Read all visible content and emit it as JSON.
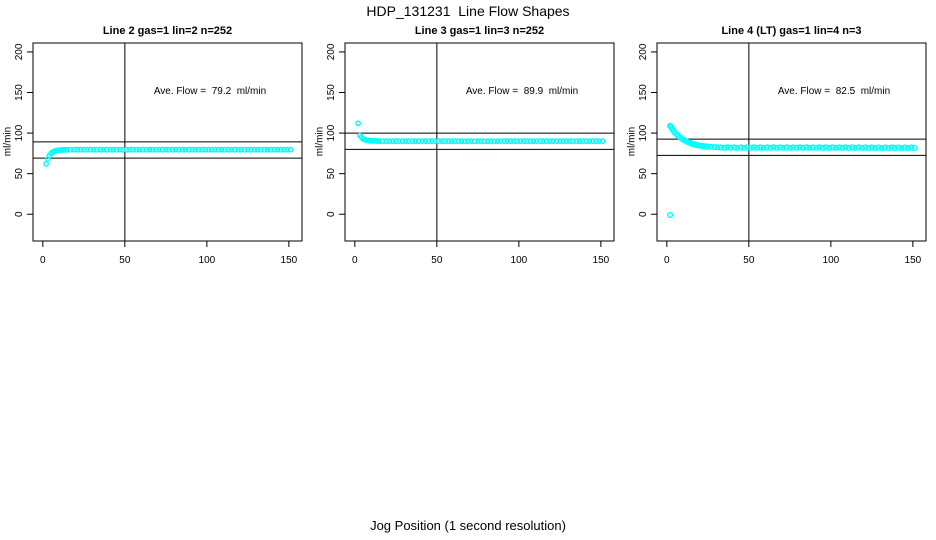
{
  "figure": {
    "title": "HDP_131231  Line Flow Shapes",
    "xlabel": "Jog Position (1 second resolution)",
    "background": "#ffffff",
    "point_color": "#00ffff",
    "axis_color": "#000000"
  },
  "chart_data": [
    {
      "type": "scatter",
      "title": "Line 2 gas=1 lin=2 n=252",
      "annotation": "Ave. Flow =  79.2  ml/min",
      "ave_flow_ml_min": 79.2,
      "ylabel": "ml/min",
      "xlim": [
        -6,
        158
      ],
      "ylim": [
        -33,
        211
      ],
      "xticks": [
        0,
        50,
        100,
        150
      ],
      "yticks": [
        0,
        50,
        100,
        150,
        200
      ],
      "vline": 50,
      "hlines": [
        89.2,
        69.2
      ],
      "marker_r": 2.2,
      "points": [
        [
          2,
          62
        ],
        [
          3,
          68
        ],
        [
          4,
          72
        ],
        [
          5,
          75
        ],
        [
          6,
          76.5
        ],
        [
          7,
          77.5
        ],
        [
          8,
          78.3
        ],
        [
          9,
          78.8
        ],
        [
          10,
          79
        ],
        [
          11,
          79.1
        ],
        [
          12,
          79.2
        ],
        [
          13,
          79.3
        ],
        [
          14,
          79.4
        ],
        [
          15,
          79.5
        ],
        [
          17,
          79.5
        ],
        [
          19,
          79.5
        ],
        [
          21,
          79.5
        ],
        [
          23,
          79.5
        ],
        [
          25,
          79.5
        ],
        [
          27,
          79.5
        ],
        [
          29,
          79.5
        ],
        [
          31,
          79.5
        ],
        [
          33,
          79.5
        ],
        [
          35,
          79.5
        ],
        [
          37,
          79.5
        ],
        [
          39,
          79.5
        ],
        [
          41,
          79.5
        ],
        [
          43,
          79.5
        ],
        [
          45,
          79.5
        ],
        [
          47,
          79.5
        ],
        [
          49,
          79.5
        ],
        [
          51,
          79.5
        ],
        [
          53,
          79.5
        ],
        [
          55,
          79.5
        ],
        [
          57,
          79.5
        ],
        [
          59,
          79.5
        ],
        [
          61,
          79.5
        ],
        [
          63,
          79.5
        ],
        [
          65,
          79.5
        ],
        [
          67,
          79.5
        ],
        [
          69,
          79.5
        ],
        [
          71,
          79.5
        ],
        [
          73,
          79.5
        ],
        [
          75,
          79.5
        ],
        [
          77,
          79.5
        ],
        [
          79,
          79.5
        ],
        [
          81,
          79.5
        ],
        [
          83,
          79.5
        ],
        [
          85,
          79.5
        ],
        [
          87,
          79.5
        ],
        [
          89,
          79.5
        ],
        [
          91,
          79.5
        ],
        [
          93,
          79.5
        ],
        [
          95,
          79.5
        ],
        [
          97,
          79.5
        ],
        [
          99,
          79.5
        ],
        [
          101,
          79.5
        ],
        [
          103,
          79.5
        ],
        [
          105,
          79.5
        ],
        [
          107,
          79.5
        ],
        [
          109,
          79.5
        ],
        [
          111,
          79.5
        ],
        [
          113,
          79.5
        ],
        [
          115,
          79.5
        ],
        [
          117,
          79.5
        ],
        [
          119,
          79.5
        ],
        [
          121,
          79.5
        ],
        [
          123,
          79.5
        ],
        [
          125,
          79.5
        ],
        [
          127,
          79.5
        ],
        [
          129,
          79.5
        ],
        [
          131,
          79.5
        ],
        [
          133,
          79.5
        ],
        [
          135,
          79.5
        ],
        [
          137,
          79.5
        ],
        [
          139,
          79.5
        ],
        [
          141,
          79.5
        ],
        [
          143,
          79.5
        ],
        [
          145,
          79.5
        ],
        [
          147,
          79.5
        ],
        [
          149,
          79.5
        ],
        [
          151,
          79.5
        ]
      ]
    },
    {
      "type": "scatter",
      "title": "Line 3 gas=1 lin=3 n=252",
      "annotation": "Ave. Flow =  89.9  ml/min",
      "ave_flow_ml_min": 89.9,
      "ylabel": "ml/min",
      "xlim": [
        -6,
        158
      ],
      "ylim": [
        -33,
        211
      ],
      "xticks": [
        0,
        50,
        100,
        150
      ],
      "yticks": [
        0,
        50,
        100,
        150,
        200
      ],
      "vline": 50,
      "hlines": [
        99.9,
        79.9
      ],
      "marker_r": 2.2,
      "points": [
        [
          2,
          112
        ],
        [
          3,
          97
        ],
        [
          4,
          95
        ],
        [
          5,
          93
        ],
        [
          6,
          92
        ],
        [
          7,
          91.5
        ],
        [
          8,
          91
        ],
        [
          9,
          90.7
        ],
        [
          10,
          90.5
        ],
        [
          11,
          90.4
        ],
        [
          12,
          90.3
        ],
        [
          13,
          90.2
        ],
        [
          14,
          90.1
        ],
        [
          15,
          90
        ],
        [
          17,
          90
        ],
        [
          19,
          90
        ],
        [
          21,
          90
        ],
        [
          23,
          90
        ],
        [
          25,
          90
        ],
        [
          27,
          90
        ],
        [
          29,
          90
        ],
        [
          31,
          90
        ],
        [
          33,
          90
        ],
        [
          35,
          90
        ],
        [
          37,
          90
        ],
        [
          39,
          90
        ],
        [
          41,
          90
        ],
        [
          43,
          90
        ],
        [
          45,
          90
        ],
        [
          47,
          90
        ],
        [
          49,
          90
        ],
        [
          51,
          90
        ],
        [
          53,
          90
        ],
        [
          55,
          90
        ],
        [
          57,
          90
        ],
        [
          59,
          90
        ],
        [
          61,
          90
        ],
        [
          63,
          90
        ],
        [
          65,
          90
        ],
        [
          67,
          89.8
        ],
        [
          69,
          90
        ],
        [
          71,
          90
        ],
        [
          73,
          89.8
        ],
        [
          75,
          90
        ],
        [
          77,
          90
        ],
        [
          79,
          89.8
        ],
        [
          81,
          90
        ],
        [
          83,
          90
        ],
        [
          85,
          89.8
        ],
        [
          87,
          90
        ],
        [
          89,
          90
        ],
        [
          91,
          90
        ],
        [
          93,
          90
        ],
        [
          95,
          90
        ],
        [
          97,
          90
        ],
        [
          99,
          90
        ],
        [
          101,
          90
        ],
        [
          103,
          90
        ],
        [
          105,
          90
        ],
        [
          107,
          90
        ],
        [
          109,
          90
        ],
        [
          111,
          90
        ],
        [
          113,
          90
        ],
        [
          115,
          90
        ],
        [
          117,
          90
        ],
        [
          119,
          90
        ],
        [
          121,
          90
        ],
        [
          123,
          90
        ],
        [
          125,
          90
        ],
        [
          127,
          90
        ],
        [
          129,
          90
        ],
        [
          131,
          90
        ],
        [
          133,
          90
        ],
        [
          135,
          90
        ],
        [
          137,
          90
        ],
        [
          139,
          90
        ],
        [
          141,
          90
        ],
        [
          143,
          90
        ],
        [
          145,
          90
        ],
        [
          147,
          90
        ],
        [
          149,
          90
        ],
        [
          151,
          90
        ]
      ]
    },
    {
      "type": "scatter",
      "title": "Line 4 (LT) gas=1 lin=4 n=3",
      "annotation": "Ave. Flow =  82.5  ml/min",
      "ave_flow_ml_min": 82.5,
      "ylabel": "ml/min",
      "xlim": [
        -6,
        158
      ],
      "ylim": [
        -33,
        211
      ],
      "xticks": [
        0,
        50,
        100,
        150
      ],
      "yticks": [
        0,
        50,
        100,
        150,
        200
      ],
      "vline": 50,
      "hlines": [
        92.5,
        72.5
      ],
      "marker_r": 2.4,
      "points": [
        [
          2,
          -1
        ],
        [
          2,
          109
        ],
        [
          2.5,
          108
        ],
        [
          3,
          106
        ],
        [
          4,
          103
        ],
        [
          5,
          100.5
        ],
        [
          6,
          98.5
        ],
        [
          7,
          96.5
        ],
        [
          8,
          94.8
        ],
        [
          9,
          93.3
        ],
        [
          10,
          92
        ],
        [
          11,
          90.8
        ],
        [
          12,
          89.8
        ],
        [
          13,
          88.8
        ],
        [
          14,
          88
        ],
        [
          15,
          87.2
        ],
        [
          16,
          86.5
        ],
        [
          17,
          85.9
        ],
        [
          18,
          85.4
        ],
        [
          19,
          85
        ],
        [
          20,
          84.6
        ],
        [
          21,
          84.3
        ],
        [
          22,
          84
        ],
        [
          23,
          83.7
        ],
        [
          24,
          83.5
        ],
        [
          25,
          83.3
        ],
        [
          27,
          83
        ],
        [
          29,
          82.7
        ],
        [
          31,
          82.5
        ],
        [
          33,
          82.4
        ],
        [
          35,
          81.8
        ],
        [
          37,
          82.4
        ],
        [
          39,
          81.8
        ],
        [
          41,
          82.4
        ],
        [
          43,
          81.8
        ],
        [
          45,
          82.4
        ],
        [
          47,
          81.8
        ],
        [
          49,
          82.4
        ],
        [
          51,
          81.8
        ],
        [
          53,
          82.4
        ],
        [
          55,
          81.8
        ],
        [
          57,
          82.4
        ],
        [
          59,
          81.8
        ],
        [
          61,
          82.4
        ],
        [
          63,
          81.8
        ],
        [
          65,
          82.4
        ],
        [
          67,
          81.8
        ],
        [
          69,
          82.4
        ],
        [
          71,
          81.8
        ],
        [
          73,
          82.4
        ],
        [
          75,
          81.8
        ],
        [
          77,
          82.4
        ],
        [
          79,
          81.8
        ],
        [
          81,
          82.4
        ],
        [
          83,
          81.8
        ],
        [
          85,
          82.4
        ],
        [
          87,
          81.8
        ],
        [
          89,
          82.4
        ],
        [
          91,
          81.8
        ],
        [
          93,
          82.3
        ],
        [
          95,
          81.7
        ],
        [
          97,
          82.3
        ],
        [
          99,
          81.7
        ],
        [
          101,
          82.3
        ],
        [
          103,
          81.7
        ],
        [
          105,
          82.3
        ],
        [
          107,
          81.7
        ],
        [
          109,
          82.3
        ],
        [
          111,
          81.7
        ],
        [
          113,
          82.3
        ],
        [
          115,
          81.7
        ],
        [
          117,
          82.3
        ],
        [
          119,
          81.7
        ],
        [
          121,
          82.2
        ],
        [
          123,
          81.6
        ],
        [
          125,
          82.2
        ],
        [
          127,
          81.6
        ],
        [
          129,
          82.2
        ],
        [
          131,
          81.6
        ],
        [
          133,
          82.2
        ],
        [
          135,
          81.6
        ],
        [
          137,
          82.2
        ],
        [
          139,
          81.6
        ],
        [
          141,
          82.2
        ],
        [
          143,
          81.6
        ],
        [
          145,
          82.2
        ],
        [
          147,
          81.6
        ],
        [
          149,
          82.2
        ],
        [
          151,
          81.6
        ]
      ]
    }
  ]
}
